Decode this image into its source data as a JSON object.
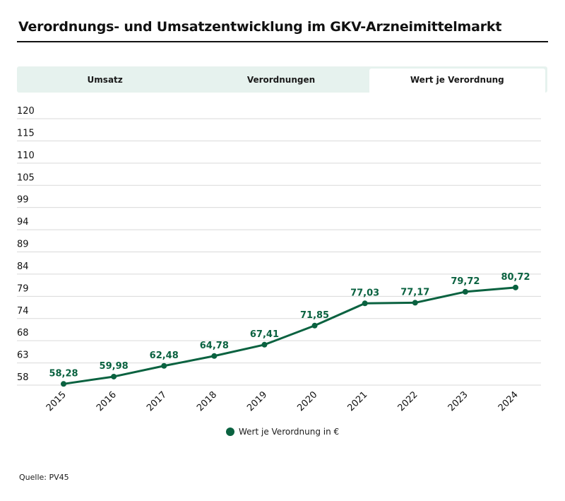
{
  "title": "Verordnungs- und Umsatzentwicklung im GKV-Arzneimittelmarkt",
  "tabs": [
    {
      "label": "Umsatz",
      "active": false
    },
    {
      "label": "Verordnungen",
      "active": false
    },
    {
      "label": "Wert je Verordnung",
      "active": true
    }
  ],
  "legend": {
    "label": "Wert je Verordnung in €"
  },
  "source": "Quelle: PV45",
  "colors": {
    "series": "#0a6240",
    "tab_bg": "#e6f2ee",
    "grid": "#d9d9d9"
  },
  "chart_data": {
    "type": "line",
    "title": "Wert je Verordnung",
    "xlabel": "",
    "ylabel": "",
    "categories": [
      "2015",
      "2016",
      "2017",
      "2018",
      "2019",
      "2020",
      "2021",
      "2022",
      "2023",
      "2024"
    ],
    "series": [
      {
        "name": "Wert je Verordnung in €",
        "values": [
          58.28,
          59.98,
          62.48,
          64.78,
          67.41,
          71.85,
          77.03,
          77.17,
          79.72,
          80.72
        ],
        "labels": [
          "58,28",
          "59,98",
          "62,48",
          "64,78",
          "67,41",
          "71,85",
          "77,03",
          "77,17",
          "79,72",
          "80,72"
        ]
      }
    ],
    "ylim": [
      58,
      120
    ],
    "yticks": [
      "58",
      "63",
      "68",
      "74",
      "79",
      "84",
      "89",
      "94",
      "99",
      "105",
      "110",
      "115",
      "120"
    ],
    "grid": true,
    "legend_position": "bottom-center",
    "xtick_rotation": -45
  }
}
